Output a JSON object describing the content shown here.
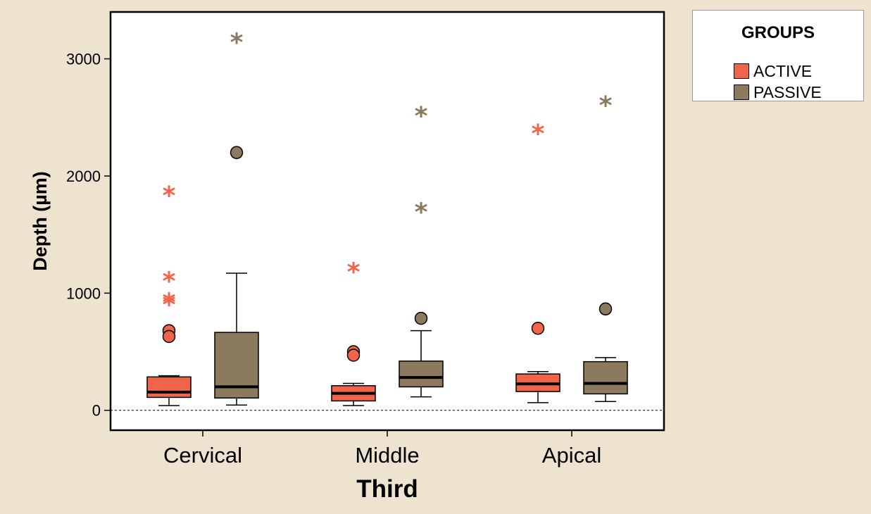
{
  "chart_data": {
    "type": "boxplot",
    "xlabel": "Third",
    "ylabel": "Depth (µm)",
    "categories": [
      "Cervical",
      "Middle",
      "Apical"
    ],
    "yticks": [
      0,
      1000,
      2000,
      3000
    ],
    "ylim": [
      -170,
      3400
    ],
    "reference_line": 0,
    "legend": {
      "title": "GROUPS",
      "placement": "right"
    },
    "series": [
      {
        "name": "ACTIVE",
        "color": "#f0654a",
        "boxes": [
          {
            "category": "Cervical",
            "whisker_low": 40,
            "q1": 110,
            "median": 155,
            "q3": 285,
            "whisker_high": 295,
            "outliers": [
              680,
              630
            ],
            "extremes": [
              1860,
              1130,
              950,
              930
            ]
          },
          {
            "category": "Middle",
            "whisker_low": 40,
            "q1": 80,
            "median": 145,
            "q3": 210,
            "whisker_high": 230,
            "outliers": [
              500,
              470
            ],
            "extremes": [
              1210
            ]
          },
          {
            "category": "Apical",
            "whisker_low": 65,
            "q1": 160,
            "median": 225,
            "q3": 310,
            "whisker_high": 330,
            "outliers": [
              700
            ],
            "extremes": [
              2390
            ]
          }
        ]
      },
      {
        "name": "PASSIVE",
        "color": "#8b7a5d",
        "boxes": [
          {
            "category": "Cervical",
            "whisker_low": 45,
            "q1": 105,
            "median": 200,
            "q3": 665,
            "whisker_high": 1170,
            "outliers": [
              2200
            ],
            "extremes": [
              3170
            ]
          },
          {
            "category": "Middle",
            "whisker_low": 115,
            "q1": 200,
            "median": 280,
            "q3": 420,
            "whisker_high": 680,
            "outliers": [
              785
            ],
            "extremes": [
              2540,
              1720
            ]
          },
          {
            "category": "Apical",
            "whisker_low": 75,
            "q1": 140,
            "median": 230,
            "q3": 415,
            "whisker_high": 450,
            "outliers": [
              865
            ],
            "extremes": [
              2630
            ]
          }
        ]
      }
    ]
  }
}
